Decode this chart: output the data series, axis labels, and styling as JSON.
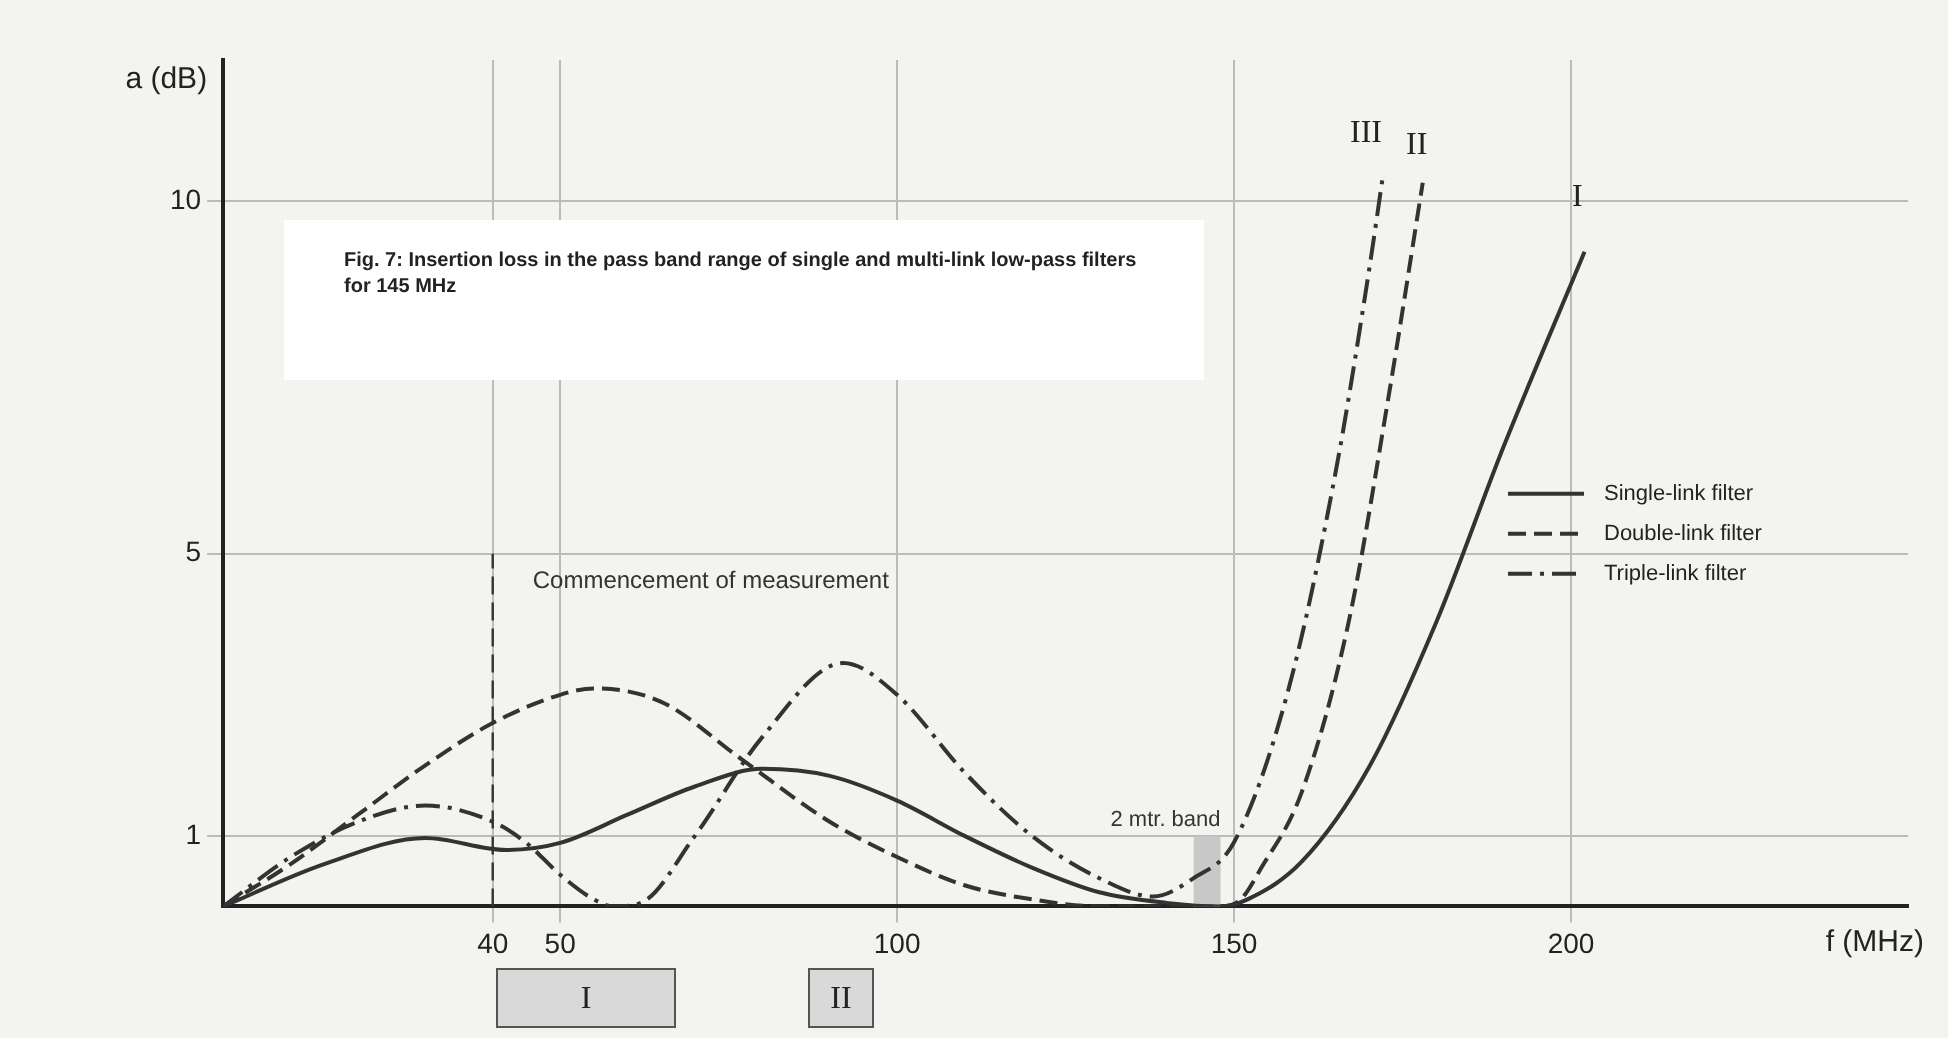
{
  "chart_data": {
    "type": "line",
    "title": "Fig. 7: Insertion loss in the pass band range of single and multi-link low-pass filters for 145 MHz",
    "xlabel": "f (MHz)",
    "ylabel": "a (dB)",
    "series": [
      {
        "name": "Single-link filter",
        "color": "#333333",
        "line_style": "solid",
        "x": [
          0,
          15,
          30,
          42,
          50,
          60,
          70,
          80,
          90,
          100,
          110,
          120,
          130,
          140,
          148,
          152,
          160,
          170,
          180,
          190,
          202
        ],
        "values": [
          0,
          0.6,
          0.97,
          0.8,
          0.9,
          1.3,
          1.7,
          1.95,
          1.85,
          1.5,
          1.0,
          0.55,
          0.2,
          0.05,
          0,
          0.1,
          0.63,
          1.97,
          4.03,
          6.52,
          9.28
        ]
      },
      {
        "name": "Double-link filter",
        "color": "#333333",
        "line_style": "dashed",
        "x": [
          0,
          10,
          20,
          30,
          40,
          50,
          55,
          65,
          77,
          90,
          100,
          110,
          120,
          130,
          140,
          148,
          151,
          154,
          160,
          167,
          173,
          178
        ],
        "values": [
          0,
          0.6,
          1.3,
          2.0,
          2.6,
          3.0,
          3.09,
          2.9,
          2.08,
          1.2,
          0.7,
          0.3,
          0.1,
          0,
          0,
          0,
          0.1,
          0.54,
          1.61,
          4.03,
          7.27,
          10.26
        ]
      },
      {
        "name": "Triple-link filter",
        "color": "#333333",
        "line_style": "dashdot",
        "x": [
          0,
          10,
          20,
          30,
          40,
          45,
          50,
          55,
          58,
          62,
          70,
          80,
          92,
          100,
          110,
          120,
          130,
          138,
          144,
          150,
          158,
          165,
          170,
          172
        ],
        "values": [
          0,
          0.7,
          1.2,
          1.43,
          1.2,
          0.9,
          0.45,
          0.1,
          0,
          0.05,
          1.0,
          2.4,
          3.45,
          3.0,
          1.9,
          1.0,
          0.4,
          0.14,
          0.4,
          0.91,
          3.05,
          6.12,
          9.0,
          10.3
        ]
      }
    ],
    "xlim": [
      0,
      250
    ],
    "xticks": [
      40,
      50,
      100,
      150,
      200
    ],
    "ylim": [
      0,
      12
    ],
    "yticks": [
      1,
      5,
      10
    ],
    "grid": true,
    "legend": "right",
    "marker": "none",
    "ref_lines": [
      {
        "axis": "x",
        "value": 40,
        "label": "Commencement of measurement",
        "line_style": "dashed"
      }
    ],
    "bands": [
      {
        "axis": "x",
        "from": 144,
        "to": 148,
        "label": "2 mtr. band",
        "color": "#c8c8c8"
      }
    ],
    "annotations": [
      "III",
      "II",
      "I",
      "I",
      "II"
    ]
  }
}
